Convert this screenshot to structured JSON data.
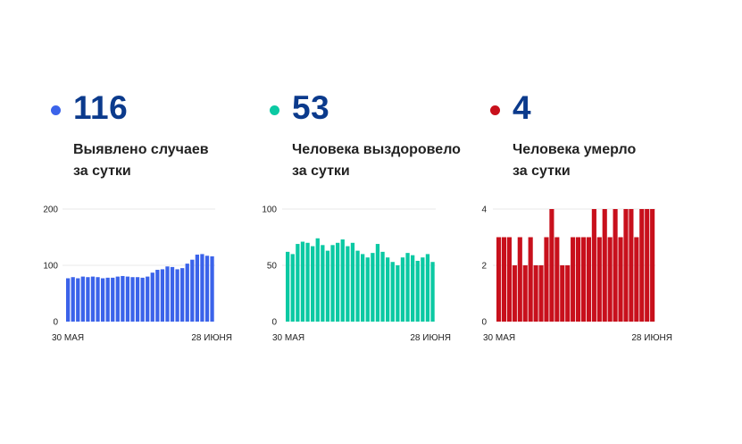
{
  "panels": [
    {
      "value": "116",
      "label_line1": "Выявлено случаев",
      "label_line2": "за сутки",
      "color": "#3b63ea"
    },
    {
      "value": "53",
      "label_line1": "Человека выздоровело",
      "label_line2": "за сутки",
      "color": "#0bc9a3"
    },
    {
      "value": "4",
      "label_line1": "Человека умерло",
      "label_line2": "за сутки",
      "color": "#c8101c"
    }
  ],
  "chart_data": [
    {
      "type": "bar",
      "x_start_label": "30 МАЯ",
      "x_end_label": "28 ИЮНЯ",
      "ylim": [
        0,
        200
      ],
      "yticks": [
        "0",
        "100",
        "200"
      ],
      "grid": true,
      "color": "#3b63ea",
      "values": [
        77,
        79,
        77,
        80,
        79,
        80,
        79,
        77,
        78,
        78,
        80,
        81,
        80,
        79,
        79,
        78,
        80,
        87,
        92,
        93,
        98,
        97,
        93,
        95,
        103,
        110,
        119,
        120,
        117,
        116
      ]
    },
    {
      "type": "bar",
      "x_start_label": "30 МАЯ",
      "x_end_label": "28 ИЮНЯ",
      "ylim": [
        0,
        100
      ],
      "yticks": [
        "0",
        "50",
        "100"
      ],
      "grid": true,
      "color": "#0bc9a3",
      "values": [
        62,
        60,
        69,
        71,
        70,
        67,
        74,
        68,
        63,
        68,
        70,
        73,
        67,
        70,
        63,
        60,
        57,
        61,
        69,
        62,
        57,
        53,
        50,
        57,
        61,
        59,
        54,
        57,
        60,
        53
      ]
    },
    {
      "type": "bar",
      "x_start_label": "30 МАЯ",
      "x_end_label": "28 ИЮНЯ",
      "ylim": [
        0,
        4
      ],
      "yticks": [
        "0",
        "2",
        "4"
      ],
      "grid": true,
      "color": "#c8101c",
      "values": [
        3,
        3,
        3,
        2,
        3,
        2,
        3,
        2,
        2,
        3,
        4,
        3,
        2,
        2,
        3,
        3,
        3,
        3,
        4,
        3,
        4,
        3,
        4,
        3,
        4,
        4,
        3,
        4,
        4,
        4
      ]
    }
  ]
}
